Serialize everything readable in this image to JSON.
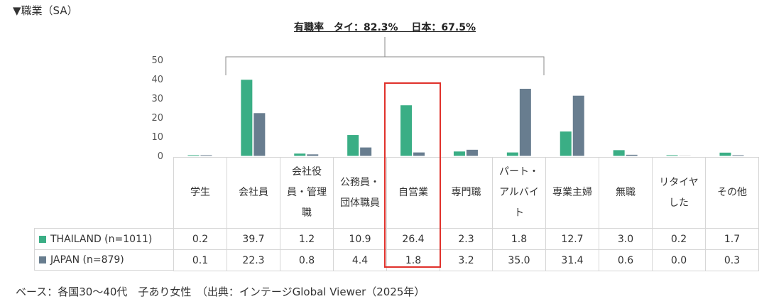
{
  "section_title": "▼職業（SA）",
  "headline": "有職率　タイ：82.3%　 日本：67.5%",
  "footer": "ベース：各国30～40代　子あり女性　（出典：インテージGlobal Viewer（2025年）",
  "colors": {
    "thailand": "#3aae85",
    "japan": "#687d8f",
    "highlight": "#e0312b"
  },
  "chart_data": {
    "type": "bar",
    "categories": [
      "学生",
      "会社員",
      "会社役員・管理職",
      "公務員・団体職員",
      "自営業",
      "専門職",
      "パート・アルバイト",
      "専業主婦",
      "無職",
      "リタイヤした",
      "その他"
    ],
    "category_lines": [
      [
        "学生"
      ],
      [
        "会社員"
      ],
      [
        "会社役",
        "員・管理",
        "職"
      ],
      [
        "公務員・",
        "団体職員"
      ],
      [
        "自営業"
      ],
      [
        "専門職"
      ],
      [
        "パート・",
        "アルバイ",
        "ト"
      ],
      [
        "専業主婦"
      ],
      [
        "無職"
      ],
      [
        "リタイヤ",
        "した"
      ],
      [
        "その他"
      ]
    ],
    "series": [
      {
        "name": "THAILAND (n=1011)",
        "values": [
          0.2,
          39.7,
          1.2,
          10.9,
          26.4,
          2.3,
          1.8,
          12.7,
          3.0,
          0.2,
          1.7
        ]
      },
      {
        "name": "JAPAN (n=879)",
        "values": [
          0.1,
          22.3,
          0.8,
          4.4,
          1.8,
          3.2,
          35.0,
          31.4,
          0.6,
          0.0,
          0.3
        ]
      }
    ],
    "value_labels": [
      [
        "0.2",
        "39.7",
        "1.2",
        "10.9",
        "26.4",
        "2.3",
        "1.8",
        "12.7",
        "3.0",
        "0.2",
        "1.7"
      ],
      [
        "0.1",
        "22.3",
        "0.8",
        "4.4",
        "1.8",
        "3.2",
        "35.0",
        "31.4",
        "0.6",
        "0.0",
        "0.3"
      ]
    ],
    "yticks": [
      "0",
      "10",
      "20",
      "30",
      "40",
      "50"
    ],
    "ylim": [
      0,
      50
    ],
    "grid": false,
    "legend": "table-rows"
  }
}
